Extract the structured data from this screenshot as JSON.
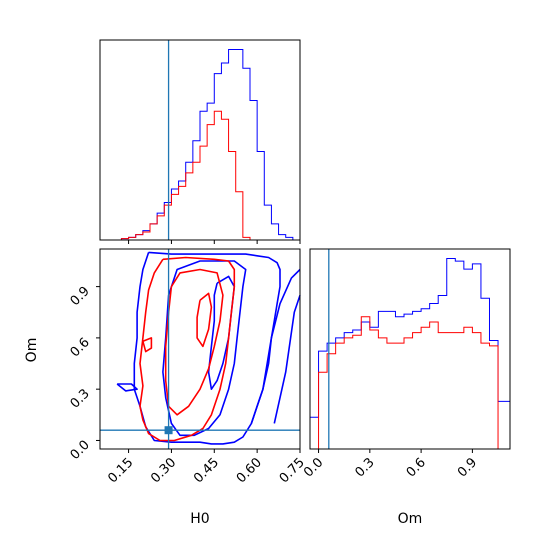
{
  "chart_data": {
    "type": "corner",
    "parameters": [
      "H0",
      "Om"
    ],
    "truths": {
      "H0": 0.29,
      "Om": 0.06
    },
    "colors": {
      "blue": "#0000ff",
      "red": "#ff0000",
      "truth": "#1f77b4"
    },
    "axes": {
      "H0": {
        "label": "H0",
        "range": [
          0.05,
          0.75
        ],
        "ticks": [
          "0.15",
          "0.30",
          "0.45",
          "0.60",
          "0.75"
        ]
      },
      "Om": {
        "label": "Om",
        "range": [
          -0.05,
          1.12
        ],
        "ticks": [
          "0.0",
          "0.3",
          "0.6",
          "0.9"
        ]
      }
    },
    "hist_H0": {
      "bin_edges": [
        0.05,
        0.075,
        0.1,
        0.125,
        0.15,
        0.175,
        0.2,
        0.225,
        0.25,
        0.275,
        0.3,
        0.325,
        0.35,
        0.375,
        0.4,
        0.425,
        0.45,
        0.475,
        0.5,
        0.525,
        0.55,
        0.575,
        0.6,
        0.625,
        0.65,
        0.675,
        0.7,
        0.725,
        0.75
      ],
      "series": [
        {
          "color": "blue",
          "values": [
            0,
            0,
            0,
            0.5,
            1,
            2,
            3.5,
            6,
            10,
            14,
            19,
            22,
            29,
            37,
            48,
            51,
            62,
            66,
            71,
            71,
            64,
            52,
            33,
            13,
            6,
            2,
            1,
            0
          ]
        },
        {
          "color": "red",
          "values": [
            0,
            0,
            0,
            0.5,
            1,
            2,
            3,
            6,
            9,
            13,
            17,
            20,
            25,
            29,
            35,
            43,
            48,
            45,
            33,
            18,
            1,
            0,
            0,
            0,
            0,
            0,
            0,
            0
          ]
        }
      ]
    },
    "hist_Om": {
      "bin_edges": [
        -0.05,
        0.0,
        0.05,
        0.1,
        0.15,
        0.2,
        0.25,
        0.3,
        0.35,
        0.4,
        0.45,
        0.5,
        0.55,
        0.6,
        0.65,
        0.7,
        0.75,
        0.8,
        0.85,
        0.9,
        0.95,
        1.0,
        1.05,
        1.12
      ],
      "series": [
        {
          "color": "blue",
          "values": [
            12,
            37,
            40,
            42,
            44,
            45,
            48,
            46,
            52,
            52,
            50,
            51,
            52,
            53,
            55,
            58,
            72,
            71,
            68,
            70,
            57,
            41,
            18
          ]
        },
        {
          "color": "red",
          "values": [
            0,
            29,
            36,
            40,
            42,
            43,
            50,
            45,
            42,
            40,
            40,
            42,
            44,
            46,
            48,
            44,
            44,
            44,
            46,
            44,
            40,
            39,
            0
          ]
        }
      ]
    },
    "contours": [
      {
        "color": "blue",
        "points": [
          [
            0.22,
            1.1
          ],
          [
            0.3,
            1.09
          ],
          [
            0.45,
            1.09
          ],
          [
            0.56,
            1.09
          ],
          [
            0.6,
            1.08
          ],
          [
            0.64,
            1.07
          ],
          [
            0.67,
            1.04
          ],
          [
            0.68,
            1.0
          ],
          [
            0.68,
            0.9
          ],
          [
            0.67,
            0.8
          ],
          [
            0.66,
            0.7
          ],
          [
            0.65,
            0.6
          ],
          [
            0.64,
            0.45
          ],
          [
            0.62,
            0.3
          ],
          [
            0.6,
            0.2
          ],
          [
            0.58,
            0.1
          ],
          [
            0.55,
            0.02
          ],
          [
            0.52,
            -0.01
          ],
          [
            0.48,
            -0.02
          ],
          [
            0.44,
            -0.02
          ],
          [
            0.4,
            -0.01
          ],
          [
            0.3,
            -0.01
          ],
          [
            0.24,
            0.0
          ],
          [
            0.21,
            0.08
          ],
          [
            0.19,
            0.2
          ],
          [
            0.17,
            0.3
          ],
          [
            0.17,
            0.45
          ],
          [
            0.18,
            0.6
          ],
          [
            0.18,
            0.75
          ],
          [
            0.19,
            0.9
          ],
          [
            0.2,
            1.0
          ],
          [
            0.22,
            1.1
          ]
        ]
      },
      {
        "color": "blue",
        "points": [
          [
            0.29,
            0.85
          ],
          [
            0.32,
            1.0
          ],
          [
            0.4,
            1.05
          ],
          [
            0.52,
            1.05
          ],
          [
            0.56,
            1.0
          ],
          [
            0.55,
            0.9
          ],
          [
            0.54,
            0.75
          ],
          [
            0.53,
            0.6
          ],
          [
            0.52,
            0.45
          ],
          [
            0.5,
            0.3
          ],
          [
            0.47,
            0.15
          ],
          [
            0.43,
            0.07
          ],
          [
            0.38,
            0.03
          ],
          [
            0.33,
            0.03
          ],
          [
            0.3,
            0.1
          ],
          [
            0.28,
            0.25
          ],
          [
            0.27,
            0.4
          ],
          [
            0.28,
            0.6
          ],
          [
            0.29,
            0.85
          ]
        ]
      },
      {
        "color": "blue",
        "points": [
          [
            0.46,
            0.92
          ],
          [
            0.5,
            0.96
          ],
          [
            0.52,
            0.9
          ],
          [
            0.51,
            0.75
          ],
          [
            0.5,
            0.6
          ],
          [
            0.48,
            0.45
          ],
          [
            0.46,
            0.35
          ],
          [
            0.44,
            0.3
          ],
          [
            0.43,
            0.4
          ],
          [
            0.44,
            0.55
          ],
          [
            0.45,
            0.7
          ],
          [
            0.45,
            0.85
          ],
          [
            0.46,
            0.92
          ]
        ]
      },
      {
        "color": "blue",
        "points": [
          [
            0.11,
            0.33
          ],
          [
            0.16,
            0.33
          ],
          [
            0.18,
            0.3
          ],
          [
            0.14,
            0.29
          ],
          [
            0.11,
            0.33
          ]
        ]
      },
      {
        "color": "blue",
        "points": [
          [
            0.58,
            0.1
          ],
          [
            0.62,
            0.3
          ],
          [
            0.65,
            0.6
          ],
          [
            0.68,
            0.8
          ],
          [
            0.72,
            0.95
          ],
          [
            0.75,
            1.0
          ]
        ]
      },
      {
        "color": "blue",
        "points": [
          [
            0.66,
            0.1
          ],
          [
            0.7,
            0.4
          ],
          [
            0.73,
            0.75
          ],
          [
            0.75,
            0.85
          ]
        ]
      },
      {
        "color": "red",
        "points": [
          [
            0.27,
            1.06
          ],
          [
            0.35,
            1.07
          ],
          [
            0.45,
            1.06
          ],
          [
            0.5,
            1.05
          ],
          [
            0.52,
            1.0
          ],
          [
            0.52,
            0.9
          ],
          [
            0.51,
            0.75
          ],
          [
            0.5,
            0.6
          ],
          [
            0.49,
            0.45
          ],
          [
            0.47,
            0.3
          ],
          [
            0.44,
            0.15
          ],
          [
            0.41,
            0.07
          ],
          [
            0.37,
            0.03
          ],
          [
            0.31,
            0.0
          ],
          [
            0.26,
            0.0
          ],
          [
            0.22,
            0.04
          ],
          [
            0.2,
            0.12
          ],
          [
            0.19,
            0.2
          ],
          [
            0.2,
            0.32
          ],
          [
            0.19,
            0.45
          ],
          [
            0.2,
            0.6
          ],
          [
            0.21,
            0.75
          ],
          [
            0.22,
            0.88
          ],
          [
            0.24,
            0.98
          ],
          [
            0.27,
            1.06
          ]
        ]
      },
      {
        "color": "red",
        "points": [
          [
            0.3,
            0.9
          ],
          [
            0.33,
            0.98
          ],
          [
            0.4,
            1.0
          ],
          [
            0.46,
            0.98
          ],
          [
            0.48,
            0.85
          ],
          [
            0.47,
            0.7
          ],
          [
            0.45,
            0.55
          ],
          [
            0.43,
            0.42
          ],
          [
            0.4,
            0.3
          ],
          [
            0.36,
            0.2
          ],
          [
            0.32,
            0.15
          ],
          [
            0.29,
            0.2
          ],
          [
            0.28,
            0.35
          ],
          [
            0.28,
            0.55
          ],
          [
            0.29,
            0.75
          ],
          [
            0.3,
            0.9
          ]
        ]
      },
      {
        "color": "red",
        "points": [
          [
            0.4,
            0.82
          ],
          [
            0.43,
            0.86
          ],
          [
            0.44,
            0.78
          ],
          [
            0.43,
            0.65
          ],
          [
            0.41,
            0.55
          ],
          [
            0.39,
            0.6
          ],
          [
            0.39,
            0.72
          ],
          [
            0.4,
            0.82
          ]
        ]
      },
      {
        "color": "red",
        "points": [
          [
            0.2,
            0.58
          ],
          [
            0.23,
            0.6
          ],
          [
            0.23,
            0.54
          ],
          [
            0.21,
            0.52
          ],
          [
            0.2,
            0.58
          ]
        ]
      }
    ]
  }
}
